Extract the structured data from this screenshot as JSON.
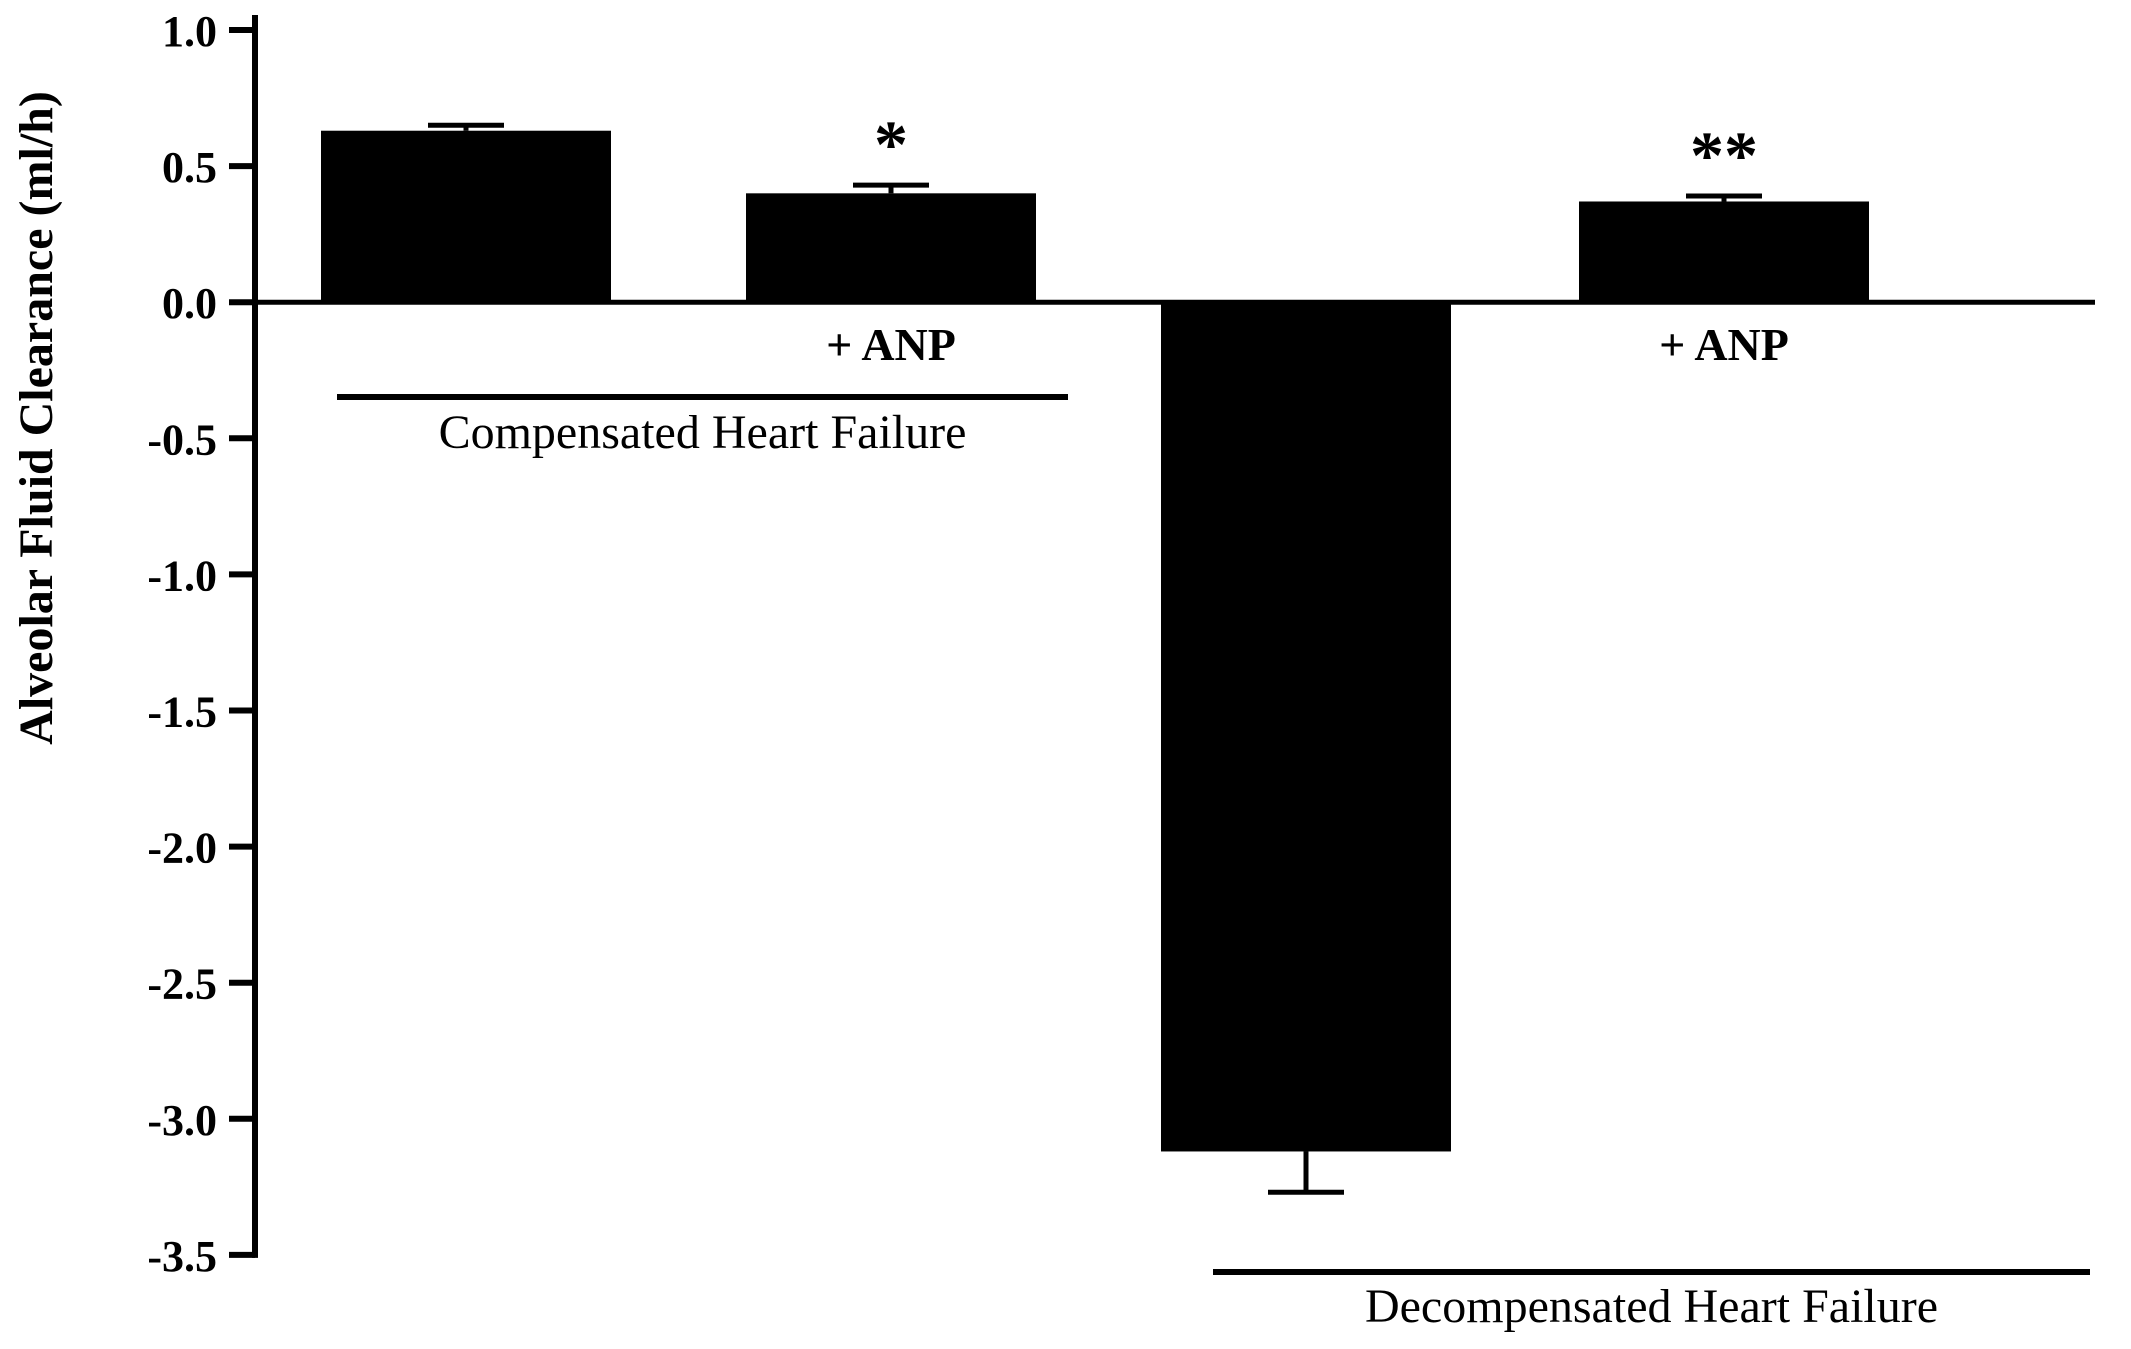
{
  "chart_data": {
    "type": "bar",
    "title": "",
    "xlabel": "",
    "ylabel": "Alveolar Fluid Clearance (ml/h)",
    "ylim": [
      -3.5,
      1.0
    ],
    "ytick_step": 0.5,
    "ytick_labels": [
      "1.0",
      "0.5",
      "0.0",
      "-0.5",
      "-1.0",
      "-1.5",
      "-2.0",
      "-2.5",
      "-3.0",
      "-3.5"
    ],
    "grid": false,
    "legend": false,
    "bar_color": "#000000",
    "background": "#ffffff",
    "bars": [
      {
        "group": "Compensated Heart Failure",
        "condition": "baseline",
        "label": "",
        "value": 0.63,
        "error": 0.02,
        "marker": ""
      },
      {
        "group": "Compensated Heart Failure",
        "condition": "+ ANP",
        "label": "+ ANP",
        "value": 0.4,
        "error": 0.03,
        "marker": "*"
      },
      {
        "group": "Decompensated Heart Failure",
        "condition": "baseline",
        "label": "",
        "value": -3.12,
        "error": 0.15,
        "marker": ""
      },
      {
        "group": "Decompensated Heart Failure",
        "condition": "+ ANP",
        "label": "+ ANP",
        "value": 0.37,
        "error": 0.02,
        "marker": "**"
      }
    ],
    "groups": [
      {
        "label": "Compensated Heart Failure",
        "bar_indices": [
          0,
          1
        ]
      },
      {
        "label": "Decompensated Heart Failure",
        "bar_indices": [
          2,
          3
        ]
      }
    ]
  }
}
